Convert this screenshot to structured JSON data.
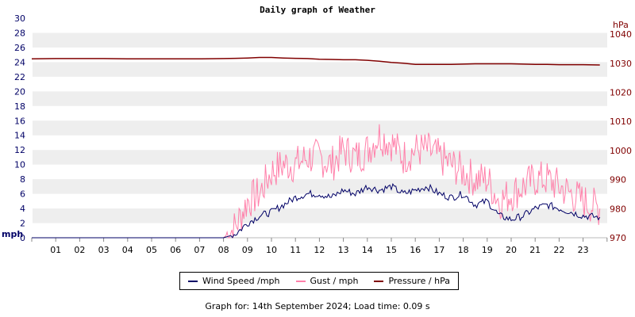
{
  "chart_data": {
    "type": "line",
    "title": "Daily graph of Weather",
    "xlabel": "",
    "ylabel_left": "mph",
    "ylabel_right": "hPa",
    "ylim_left": [
      0,
      30
    ],
    "ylim_right": [
      970,
      1040
    ],
    "x_tick_labels": [
      "01",
      "02",
      "03",
      "04",
      "05",
      "06",
      "07",
      "08",
      "09",
      "10",
      "11",
      "12",
      "13",
      "14",
      "15",
      "16",
      "17",
      "18",
      "19",
      "20",
      "21",
      "22",
      "23"
    ],
    "y_left_ticks": [
      0,
      2,
      4,
      6,
      8,
      10,
      12,
      14,
      16,
      18,
      20,
      22,
      24,
      26,
      28,
      30
    ],
    "y_right_ticks": [
      970,
      980,
      990,
      1000,
      1010,
      1020,
      1030,
      1040
    ],
    "grid": "alternating horizontal bands every 2 mph, vertical tick marks each hour",
    "legend_position": "bottom-center",
    "x_hours": [
      0,
      1,
      2,
      3,
      4,
      5,
      6,
      7,
      8,
      8.5,
      9,
      9.5,
      10,
      10.5,
      11,
      11.5,
      12,
      12.5,
      13,
      13.5,
      14,
      14.5,
      15,
      15.5,
      16,
      16.5,
      17,
      17.5,
      18,
      18.5,
      19,
      19.5,
      20,
      20.5,
      21,
      21.5,
      22,
      22.5,
      23,
      23.7
    ],
    "series": [
      {
        "name": "Wind Speed /mph",
        "color": "#000066",
        "axis": "left",
        "values": [
          0,
          0,
          0,
          0,
          0,
          0,
          0,
          0,
          0,
          0.5,
          2,
          3,
          3.5,
          4.5,
          5.5,
          6,
          6,
          5.5,
          6.5,
          6,
          7,
          6.5,
          7,
          6,
          6.5,
          7,
          6,
          5.5,
          6,
          4.5,
          5,
          3,
          2.5,
          3,
          4,
          4.5,
          4,
          3.5,
          3,
          2.8
        ]
      },
      {
        "name": "Gust / mph",
        "color": "#ff80aa",
        "axis": "left",
        "values": [
          0,
          0,
          0,
          0,
          0,
          0,
          0,
          0,
          0,
          1.5,
          5,
          6,
          9,
          10,
          10,
          11,
          11,
          10,
          12,
          11,
          12,
          14,
          13,
          11,
          12,
          12,
          11,
          10,
          9,
          8,
          8,
          5,
          6,
          7,
          8,
          8,
          7,
          6,
          5,
          4
        ]
      },
      {
        "name": "Pressure / hPa",
        "color": "#800000",
        "axis": "right",
        "values": [
          1031.5,
          1031.6,
          1031.6,
          1031.6,
          1031.5,
          1031.5,
          1031.5,
          1031.5,
          1031.6,
          1031.7,
          1031.8,
          1032,
          1032,
          1031.8,
          1031.7,
          1031.6,
          1031.4,
          1031.3,
          1031.2,
          1031.2,
          1031,
          1030.7,
          1030.3,
          1030,
          1029.6,
          1029.6,
          1029.6,
          1029.6,
          1029.7,
          1029.8,
          1029.8,
          1029.8,
          1029.8,
          1029.7,
          1029.6,
          1029.6,
          1029.5,
          1029.5,
          1029.5,
          1029.4
        ]
      }
    ]
  },
  "header": {
    "title": "Daily graph of Weather"
  },
  "axes": {
    "left_unit": "mph",
    "right_unit": "hPa"
  },
  "legend": {
    "items": [
      {
        "label": "Wind Speed /mph",
        "color": "#000066"
      },
      {
        "label": "Gust / mph",
        "color": "#ff80aa"
      },
      {
        "label": "Pressure / hPa",
        "color": "#800000"
      }
    ]
  },
  "footer": {
    "text": "Graph for: 14th September 2024; Load time: 0.09 s"
  }
}
